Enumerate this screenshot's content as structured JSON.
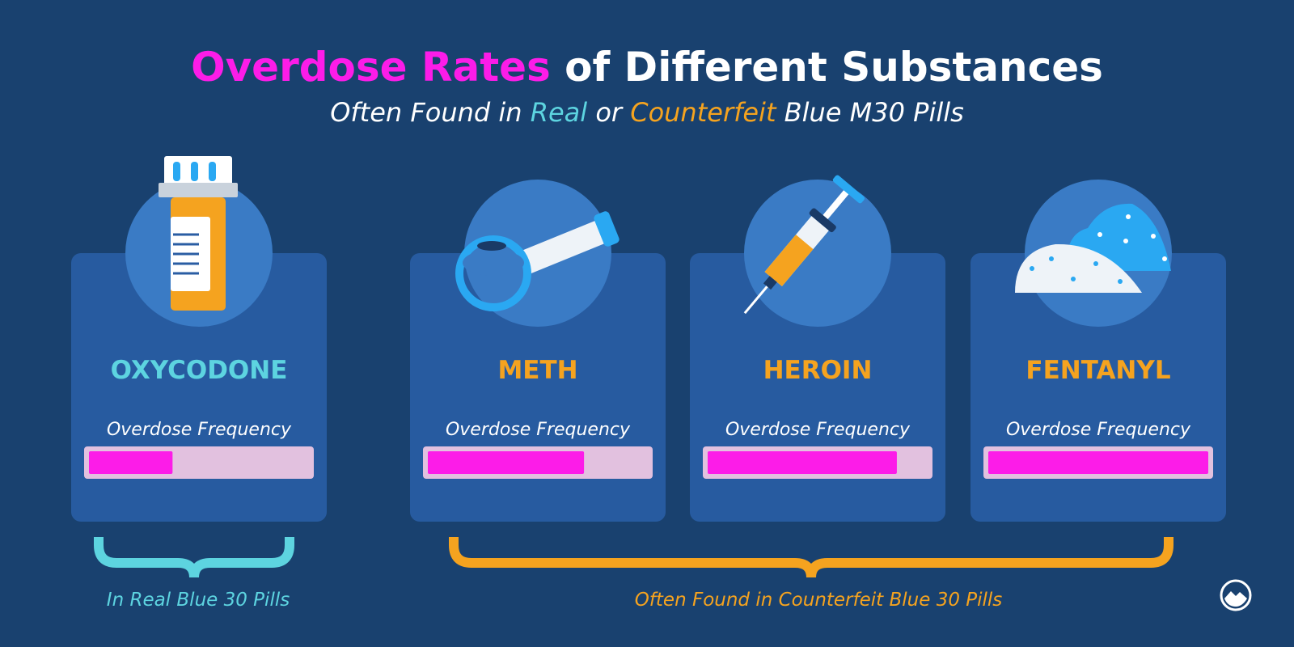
{
  "title": [
    "Overdose Rates",
    " of Different Substances"
  ],
  "subtitle": [
    "Often Found in ",
    "Real",
    " or ",
    "Counterfeit",
    " Blue M30 Pills"
  ],
  "cards": [
    {
      "name": "OXYCODONE",
      "label": "Overdose Frequency",
      "value": 38
    },
    {
      "name": "METH",
      "label": "Overdose Frequency",
      "value": 71
    },
    {
      "name": "HEROIN",
      "label": "Overdose Frequency",
      "value": 86
    },
    {
      "name": "FENTANYL",
      "label": "Overdose Frequency",
      "value": 100
    }
  ],
  "groups": [
    "In Real Blue 30 Pills",
    "Often Found in Counterfeit Blue 30 Pills"
  ]
}
